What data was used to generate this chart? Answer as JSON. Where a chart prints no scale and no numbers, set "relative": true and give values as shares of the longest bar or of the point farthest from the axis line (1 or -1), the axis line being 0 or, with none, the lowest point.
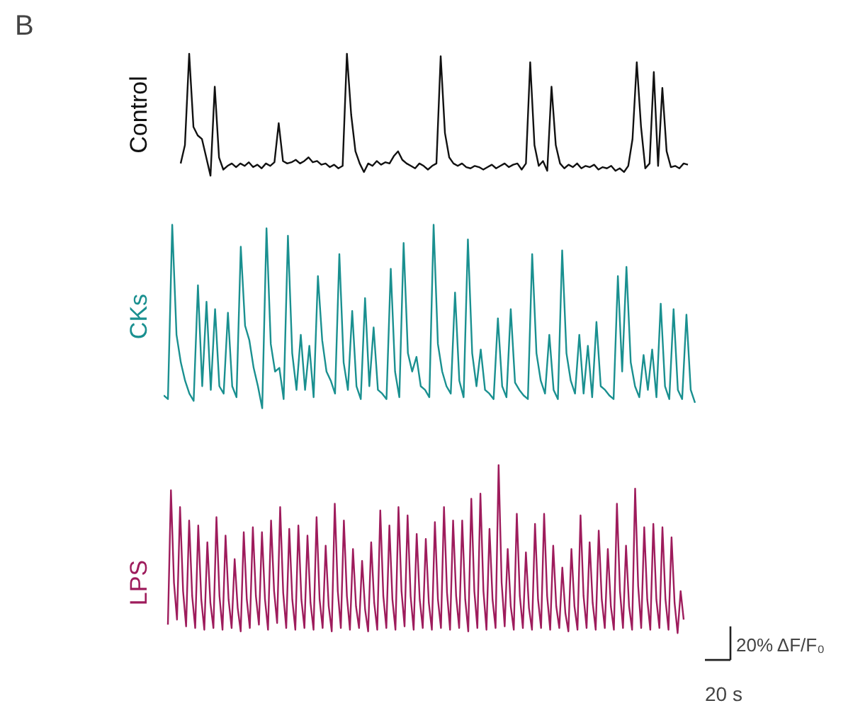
{
  "chart_data": [
    {
      "type": "line",
      "relative": true,
      "ylabel": "Control",
      "annotations": [
        "B"
      ],
      "grid": false,
      "line_style": "solid",
      "categories": [
        null,
        null,
        null,
        null,
        null,
        null,
        null,
        null,
        null,
        null,
        null,
        null,
        null,
        null,
        null,
        null,
        null,
        null,
        null,
        null,
        null,
        null,
        null,
        null,
        null,
        null,
        null,
        null,
        null,
        null,
        null,
        null,
        null,
        null,
        null,
        null,
        null,
        null,
        null,
        null,
        null,
        null,
        null,
        null,
        null,
        null,
        null,
        null,
        null,
        null,
        null,
        null,
        null,
        null,
        null,
        null,
        null,
        null,
        null,
        null,
        null,
        null,
        null,
        null,
        null,
        null,
        null,
        null,
        null,
        null,
        null,
        null,
        null,
        null,
        null,
        null,
        null,
        null,
        null,
        null,
        null,
        null,
        null,
        null,
        null,
        null,
        null,
        null,
        null,
        null,
        null,
        null,
        null,
        null,
        null,
        null,
        null,
        null,
        null,
        null,
        null,
        null,
        null,
        null,
        null,
        null,
        null,
        null,
        null,
        null,
        null,
        null,
        null,
        null,
        null,
        null,
        null,
        null,
        null,
        null
      ],
      "series": [
        {
          "color": "#111111",
          "values": [
            0.1,
            0.25,
            1.0,
            0.4,
            0.33,
            0.3,
            0.15,
            0.0,
            0.73,
            0.15,
            0.05,
            0.08,
            0.1,
            0.07,
            0.1,
            0.08,
            0.11,
            0.07,
            0.09,
            0.06,
            0.1,
            0.08,
            0.11,
            0.43,
            0.12,
            0.1,
            0.11,
            0.13,
            0.1,
            0.12,
            0.15,
            0.11,
            0.12,
            0.09,
            0.1,
            0.07,
            0.09,
            0.06,
            0.08,
            1.0,
            0.5,
            0.2,
            0.1,
            0.03,
            0.1,
            0.08,
            0.12,
            0.09,
            0.11,
            0.1,
            0.16,
            0.2,
            0.13,
            0.1,
            0.08,
            0.06,
            0.1,
            0.08,
            0.05,
            0.08,
            0.1,
            0.98,
            0.35,
            0.15,
            0.1,
            0.08,
            0.1,
            0.07,
            0.06,
            0.08,
            0.07,
            0.05,
            0.07,
            0.09,
            0.06,
            0.08,
            0.1,
            0.07,
            0.09,
            0.1,
            0.05,
            0.1,
            0.93,
            0.25,
            0.08,
            0.12,
            0.04,
            0.73,
            0.25,
            0.1,
            0.06,
            0.09,
            0.07,
            0.1,
            0.06,
            0.08,
            0.07,
            0.09,
            0.05,
            0.07,
            0.06,
            0.08,
            0.04,
            0.06,
            0.03,
            0.08,
            0.3,
            0.93,
            0.4,
            0.06,
            0.1,
            0.85,
            0.08,
            0.72,
            0.2,
            0.07,
            0.08,
            0.06,
            0.1,
            0.09
          ]
        }
      ]
    },
    {
      "type": "line",
      "relative": true,
      "ylabel": "CKs",
      "grid": false,
      "line_style": "solid",
      "categories": [
        null,
        null,
        null,
        null,
        null,
        null,
        null,
        null,
        null,
        null,
        null,
        null,
        null,
        null,
        null,
        null,
        null,
        null,
        null,
        null,
        null,
        null,
        null,
        null,
        null,
        null,
        null,
        null,
        null,
        null,
        null,
        null,
        null,
        null,
        null,
        null,
        null,
        null,
        null,
        null,
        null,
        null,
        null,
        null,
        null,
        null,
        null,
        null,
        null,
        null,
        null,
        null,
        null,
        null,
        null,
        null,
        null,
        null,
        null,
        null,
        null,
        null,
        null,
        null,
        null,
        null,
        null,
        null,
        null,
        null,
        null,
        null,
        null,
        null,
        null,
        null,
        null,
        null,
        null,
        null,
        null,
        null,
        null,
        null,
        null,
        null,
        null,
        null,
        null,
        null,
        null,
        null,
        null,
        null,
        null,
        null,
        null,
        null,
        null,
        null,
        null,
        null,
        null,
        null,
        null,
        null,
        null,
        null,
        null,
        null,
        null,
        null,
        null,
        null,
        null,
        null,
        null,
        null,
        null,
        null,
        null,
        null,
        null,
        null,
        null
      ],
      "series": [
        {
          "color": "#1a9090",
          "values": [
            0.07,
            0.05,
            1.0,
            0.4,
            0.25,
            0.15,
            0.08,
            0.04,
            0.67,
            0.12,
            0.58,
            0.1,
            0.54,
            0.12,
            0.08,
            0.52,
            0.12,
            0.06,
            0.88,
            0.45,
            0.37,
            0.22,
            0.12,
            0.0,
            0.98,
            0.35,
            0.2,
            0.22,
            0.05,
            0.94,
            0.3,
            0.1,
            0.4,
            0.1,
            0.34,
            0.06,
            0.72,
            0.37,
            0.2,
            0.15,
            0.08,
            0.84,
            0.25,
            0.1,
            0.53,
            0.12,
            0.05,
            0.6,
            0.12,
            0.44,
            0.1,
            0.08,
            0.05,
            0.76,
            0.2,
            0.06,
            0.9,
            0.3,
            0.2,
            0.28,
            0.12,
            0.1,
            0.06,
            1.0,
            0.35,
            0.2,
            0.12,
            0.08,
            0.63,
            0.15,
            0.06,
            0.92,
            0.3,
            0.12,
            0.32,
            0.1,
            0.08,
            0.05,
            0.49,
            0.12,
            0.06,
            0.54,
            0.14,
            0.1,
            0.07,
            0.05,
            0.84,
            0.3,
            0.15,
            0.08,
            0.4,
            0.1,
            0.05,
            0.86,
            0.3,
            0.15,
            0.08,
            0.4,
            0.08,
            0.34,
            0.06,
            0.47,
            0.12,
            0.1,
            0.07,
            0.05,
            0.72,
            0.2,
            0.77,
            0.25,
            0.12,
            0.06,
            0.29,
            0.1,
            0.32,
            0.06,
            0.57,
            0.12,
            0.05,
            0.54,
            0.1,
            0.05,
            0.51,
            0.1,
            0.03
          ]
        }
      ]
    },
    {
      "type": "line",
      "relative": true,
      "ylabel": "LPS",
      "annotations": [
        "20% ΔF/F₀",
        "20 s"
      ],
      "grid": false,
      "line_style": "solid",
      "categories": [
        null,
        null,
        null,
        null,
        null,
        null,
        null,
        null,
        null,
        null,
        null,
        null,
        null,
        null,
        null,
        null,
        null,
        null,
        null,
        null,
        null,
        null,
        null,
        null,
        null,
        null,
        null,
        null,
        null,
        null,
        null,
        null,
        null,
        null,
        null,
        null,
        null,
        null,
        null,
        null,
        null,
        null,
        null,
        null,
        null,
        null,
        null,
        null,
        null,
        null,
        null,
        null,
        null,
        null,
        null,
        null,
        null,
        null,
        null,
        null,
        null,
        null,
        null,
        null,
        null,
        null,
        null,
        null,
        null,
        null,
        null,
        null,
        null,
        null,
        null,
        null,
        null,
        null,
        null,
        null,
        null,
        null,
        null,
        null,
        null,
        null,
        null,
        null,
        null,
        null,
        null,
        null,
        null,
        null,
        null,
        null,
        null,
        null,
        null,
        null,
        null,
        null,
        null,
        null,
        null,
        null,
        null,
        null,
        null,
        null,
        null,
        null,
        null,
        null,
        null,
        null,
        null,
        null,
        null,
        null,
        null,
        null,
        null,
        null,
        null,
        null,
        null,
        null,
        null,
        null,
        null,
        null,
        null,
        null,
        null,
        null,
        null,
        null,
        null,
        null,
        null,
        null,
        null,
        null,
        null,
        null,
        null,
        null,
        null,
        null,
        null,
        null,
        null,
        null,
        null,
        null,
        null,
        null,
        null,
        null,
        null,
        null,
        null,
        null,
        null,
        null,
        null,
        null,
        null,
        null,
        null
      ],
      "series": [
        {
          "color": "#9e1c5c",
          "values": [
            0.05,
            0.85,
            0.3,
            0.08,
            0.75,
            0.25,
            0.04,
            0.67,
            0.22,
            0.03,
            0.64,
            0.2,
            0.02,
            0.54,
            0.18,
            0.03,
            0.69,
            0.22,
            0.02,
            0.58,
            0.2,
            0.03,
            0.44,
            0.15,
            0.01,
            0.6,
            0.2,
            0.03,
            0.63,
            0.22,
            0.05,
            0.6,
            0.2,
            0.02,
            0.67,
            0.25,
            0.06,
            0.75,
            0.24,
            0.03,
            0.62,
            0.2,
            0.02,
            0.64,
            0.2,
            0.03,
            0.58,
            0.18,
            0.02,
            0.69,
            0.2,
            0.03,
            0.52,
            0.16,
            0.01,
            0.77,
            0.25,
            0.03,
            0.67,
            0.22,
            0.02,
            0.5,
            0.16,
            0.03,
            0.43,
            0.14,
            0.01,
            0.54,
            0.18,
            0.02,
            0.73,
            0.22,
            0.03,
            0.64,
            0.2,
            0.02,
            0.75,
            0.25,
            0.04,
            0.7,
            0.22,
            0.02,
            0.59,
            0.2,
            0.03,
            0.56,
            0.18,
            0.02,
            0.66,
            0.2,
            0.03,
            0.75,
            0.24,
            0.02,
            0.67,
            0.22,
            0.03,
            0.67,
            0.2,
            0.01,
            0.8,
            0.25,
            0.03,
            0.83,
            0.25,
            0.02,
            0.62,
            0.2,
            0.03,
            1.0,
            0.3,
            0.04,
            0.5,
            0.16,
            0.02,
            0.71,
            0.22,
            0.03,
            0.48,
            0.15,
            0.02,
            0.65,
            0.2,
            0.03,
            0.71,
            0.22,
            0.02,
            0.52,
            0.16,
            0.03,
            0.39,
            0.12,
            0.01,
            0.5,
            0.16,
            0.02,
            0.7,
            0.22,
            0.03,
            0.54,
            0.18,
            0.02,
            0.61,
            0.2,
            0.03,
            0.5,
            0.16,
            0.02,
            0.77,
            0.25,
            0.03,
            0.52,
            0.16,
            0.02,
            0.86,
            0.28,
            0.03,
            0.63,
            0.2,
            0.02,
            0.65,
            0.2,
            0.03,
            0.63,
            0.2,
            0.02,
            0.57,
            0.18,
            0.0,
            0.25,
            0.08
          ]
        }
      ]
    }
  ]
}
